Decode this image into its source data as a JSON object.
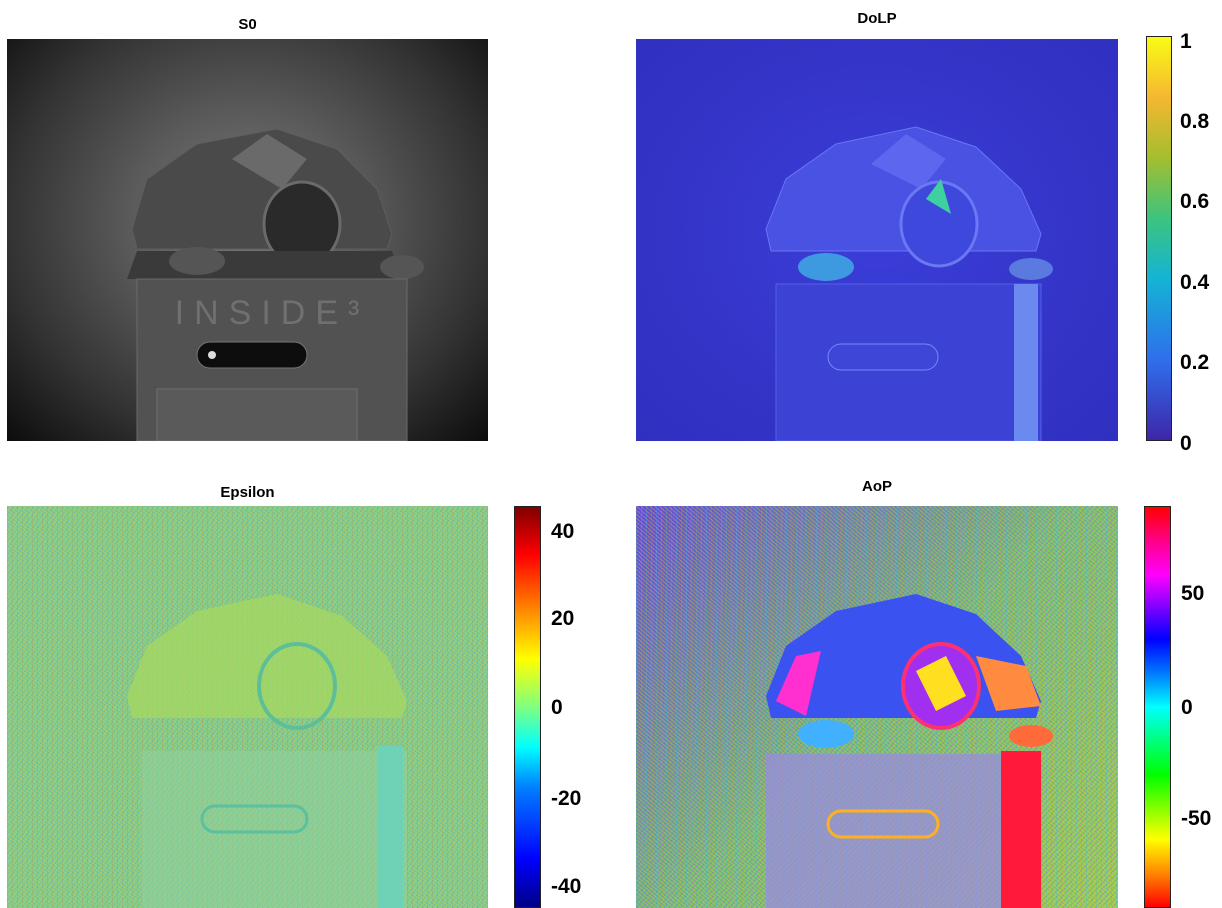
{
  "panels": {
    "s0": {
      "title": "S0"
    },
    "dolp": {
      "title": "DoLP",
      "colorbar_ticks": [
        "1",
        "0.8",
        "0.6",
        "0.4",
        "0.2",
        "0"
      ]
    },
    "epsilon": {
      "title": "Epsilon",
      "colorbar_ticks": [
        "40",
        "20",
        "0",
        "-20",
        "-40"
      ]
    },
    "aop": {
      "title": "AoP",
      "colorbar_ticks": [
        "50",
        "0",
        "-50"
      ]
    }
  },
  "image_text": "INSIDE³",
  "colors": {
    "dolp_low": "#3e26a8",
    "dolp_high": "#f9fb15",
    "epsilon_low": "#000084",
    "epsilon_high": "#800000",
    "aop_low": "#ff0000",
    "aop_high": "#ff0000"
  }
}
